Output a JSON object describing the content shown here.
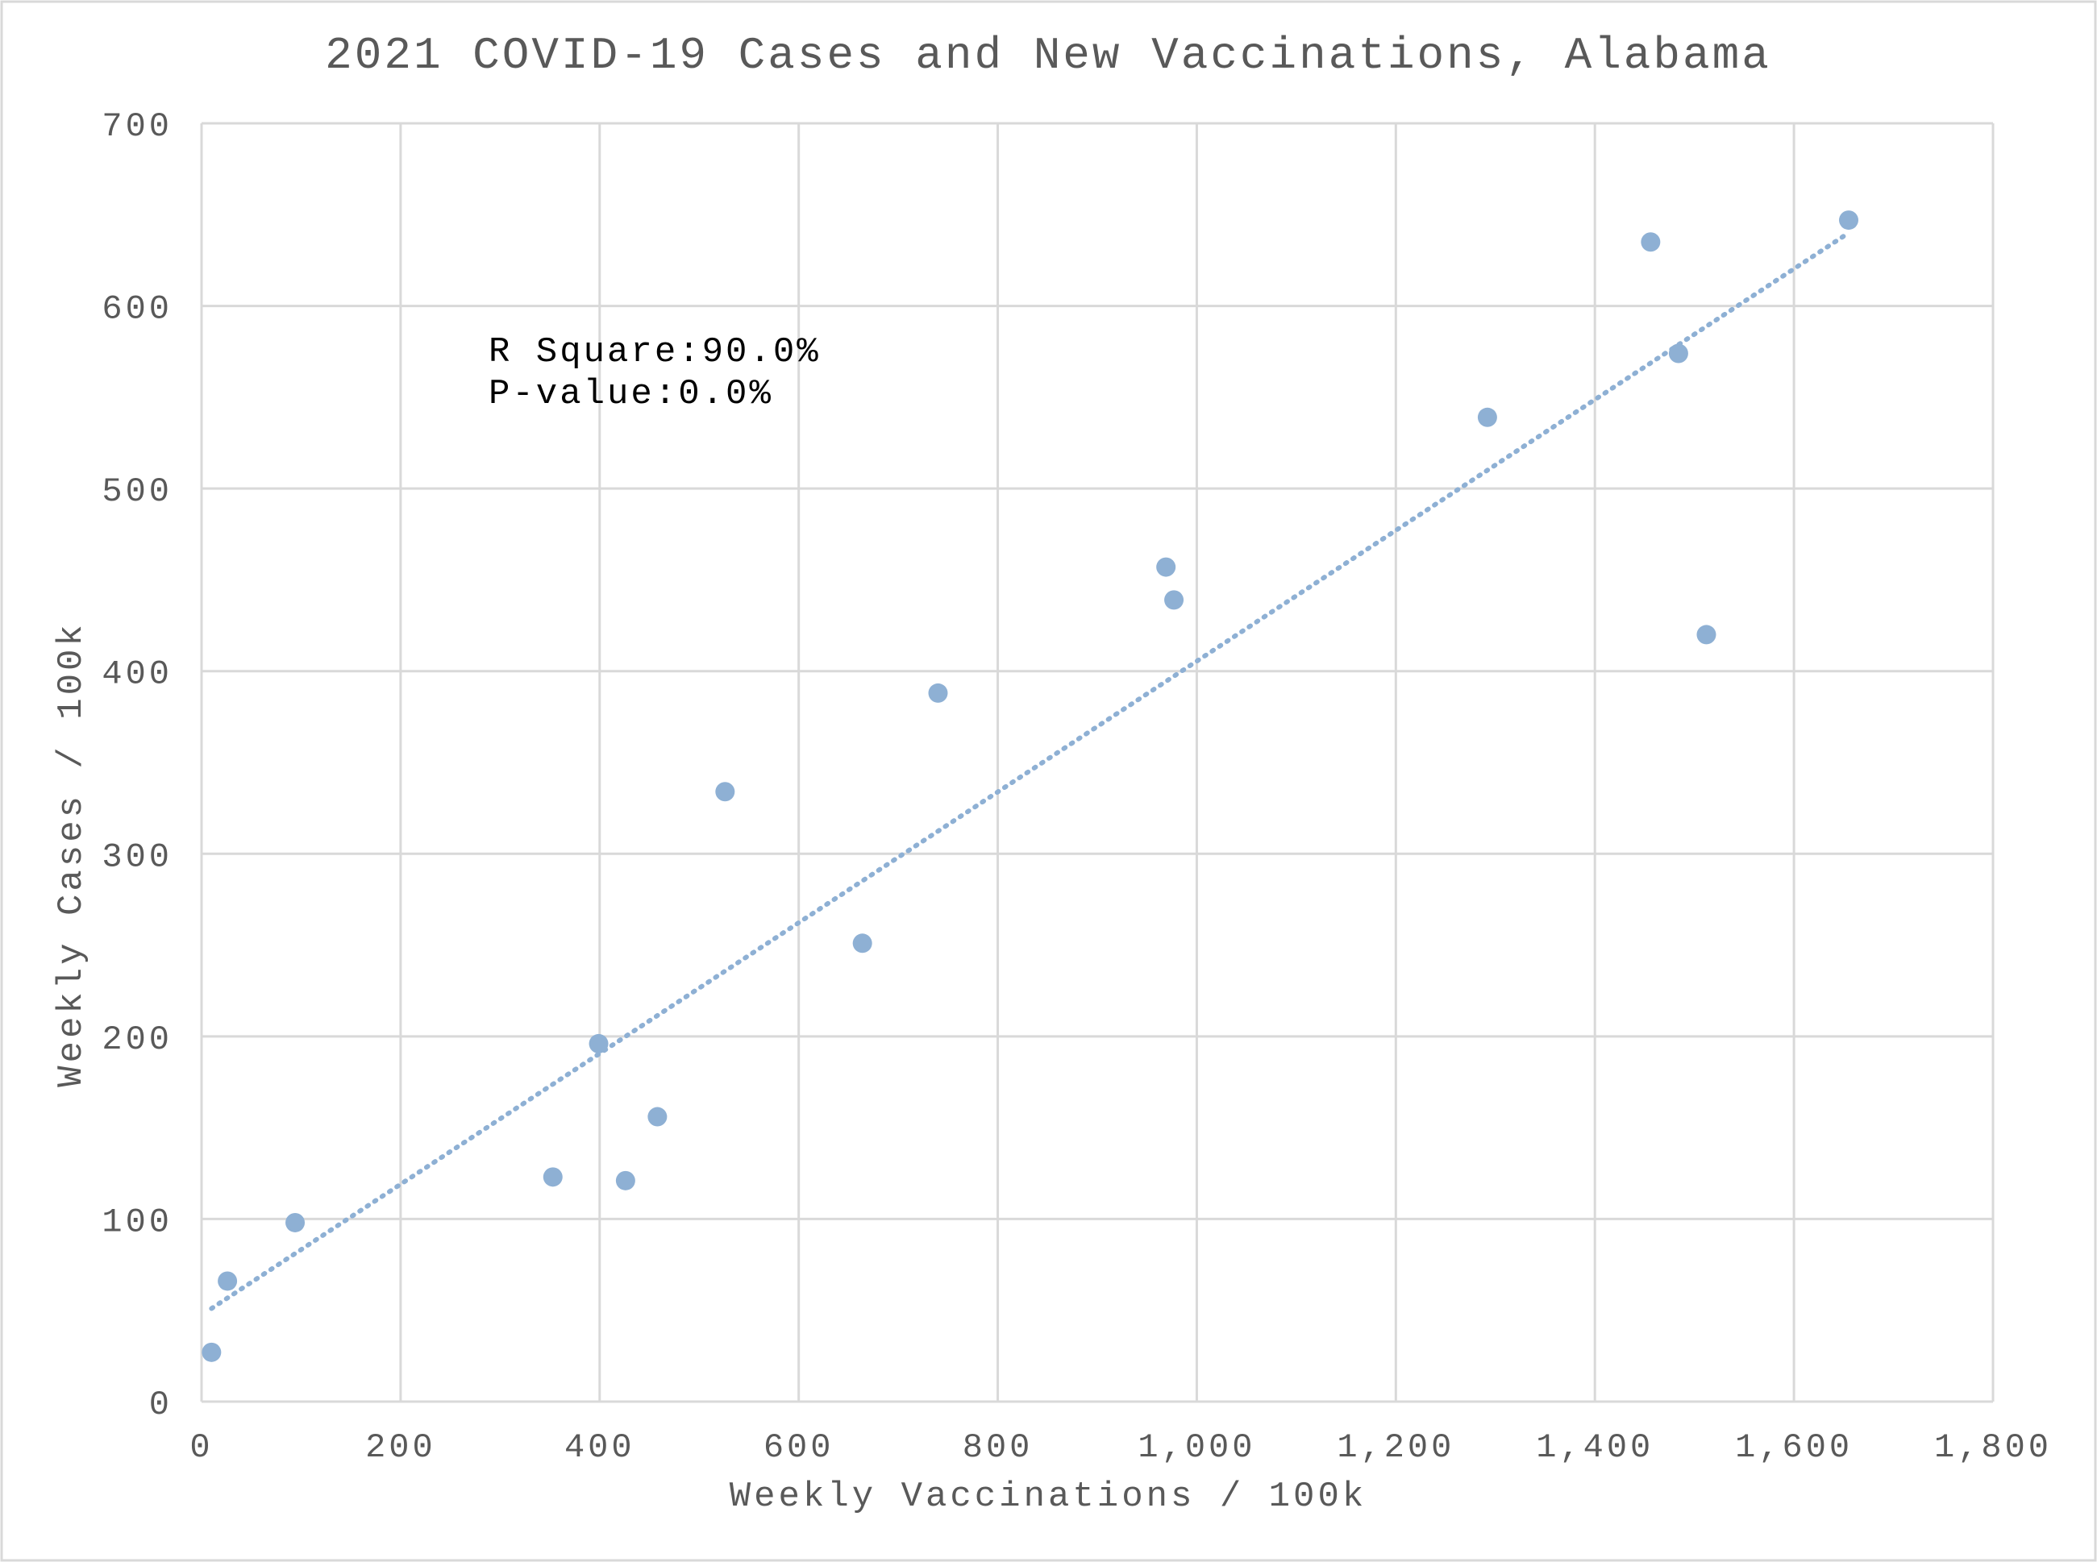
{
  "chart_data": {
    "type": "scatter",
    "title": "2021 COVID-19 Cases and New Vaccinations, Alabama",
    "xlabel": "Weekly Vaccinations / 100k",
    "ylabel": "Weekly Cases / 100k",
    "xlim": [
      0,
      1800
    ],
    "ylim": [
      0,
      700
    ],
    "x_ticks": [
      0,
      200,
      400,
      600,
      800,
      1000,
      1200,
      1400,
      1600,
      1800
    ],
    "x_tick_labels": [
      "0",
      "200",
      "400",
      "600",
      "800",
      "1,000",
      "1,200",
      "1,400",
      "1,600",
      "1,800"
    ],
    "y_ticks": [
      0,
      100,
      200,
      300,
      400,
      500,
      600,
      700
    ],
    "y_tick_labels": [
      "0",
      "100",
      "200",
      "300",
      "400",
      "500",
      "600",
      "700"
    ],
    "grid": true,
    "legend": "none",
    "series": [
      {
        "color": "#8eb0d4",
        "points": [
          {
            "x": 10,
            "y": 27
          },
          {
            "x": 26,
            "y": 66
          },
          {
            "x": 94,
            "y": 98
          },
          {
            "x": 353,
            "y": 123
          },
          {
            "x": 399,
            "y": 196
          },
          {
            "x": 426,
            "y": 121
          },
          {
            "x": 458,
            "y": 156
          },
          {
            "x": 526,
            "y": 334
          },
          {
            "x": 664,
            "y": 251
          },
          {
            "x": 740,
            "y": 388
          },
          {
            "x": 969,
            "y": 457
          },
          {
            "x": 977,
            "y": 439
          },
          {
            "x": 1292,
            "y": 539
          },
          {
            "x": 1456,
            "y": 635
          },
          {
            "x": 1484,
            "y": 574
          },
          {
            "x": 1512,
            "y": 420
          },
          {
            "x": 1655,
            "y": 647
          }
        ]
      }
    ],
    "trendline": {
      "style": "dotted",
      "color": "#8eb0d4",
      "x": [
        10,
        1655
      ],
      "y": [
        51,
        640
      ]
    },
    "annotations": {
      "r_square_label": "R Square:",
      "r_square_value": "90.0%",
      "p_value_label": "P-value:",
      "p_value_value": "0.0%"
    }
  }
}
